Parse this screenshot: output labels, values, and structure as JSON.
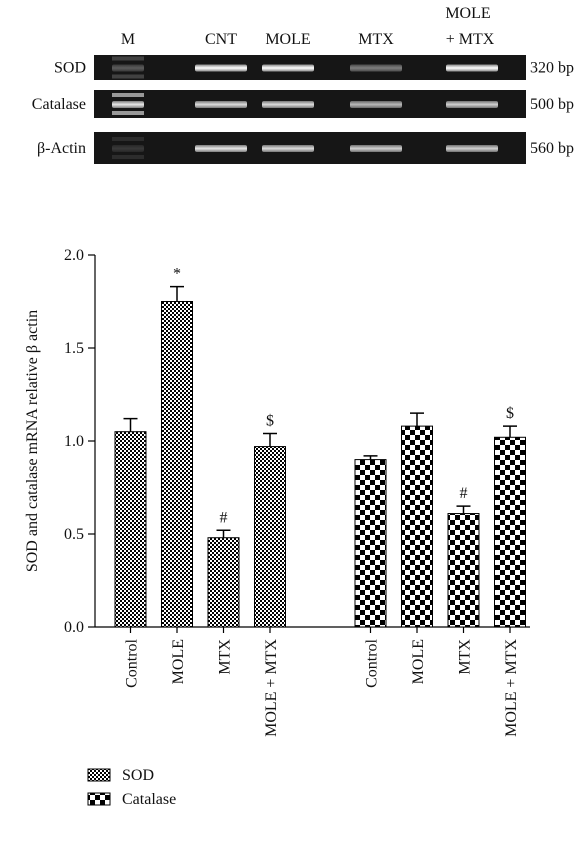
{
  "gel": {
    "lanes": [
      "M",
      "CNT",
      "MOLE",
      "MTX",
      "MOLE ",
      "+ MTX"
    ],
    "rows": [
      {
        "label": "SOD",
        "size": "320 bp"
      },
      {
        "label": "Catalase",
        "size": "500 bp"
      },
      {
        "label": "β-Actin",
        "size": "560 bp"
      }
    ]
  },
  "chart_data": {
    "type": "bar",
    "ylabel": "SOD and catalase mRNA relative β actin",
    "categories": [
      "Control",
      "MOLE",
      "MTX",
      "MOLE + MTX"
    ],
    "series": [
      {
        "name": "SOD",
        "color": "#000000",
        "values": [
          1.05,
          1.75,
          0.48,
          0.97
        ],
        "errors": [
          0.07,
          0.08,
          0.04,
          0.07
        ],
        "annotations": [
          null,
          "*",
          "#",
          "$"
        ]
      },
      {
        "name": "Catalase",
        "color": "#000000",
        "values": [
          0.9,
          1.08,
          0.61,
          1.02
        ],
        "errors": [
          0.02,
          0.07,
          0.04,
          0.06
        ],
        "annotations": [
          null,
          null,
          "#",
          "$"
        ]
      }
    ],
    "ylim": [
      0,
      2
    ],
    "yticks": [
      {
        "value": 0,
        "label": "0.0"
      },
      0.5,
      {
        "value": 1,
        "label": "1.0"
      },
      1.5,
      {
        "value": 2,
        "label": "2.0"
      }
    ]
  }
}
